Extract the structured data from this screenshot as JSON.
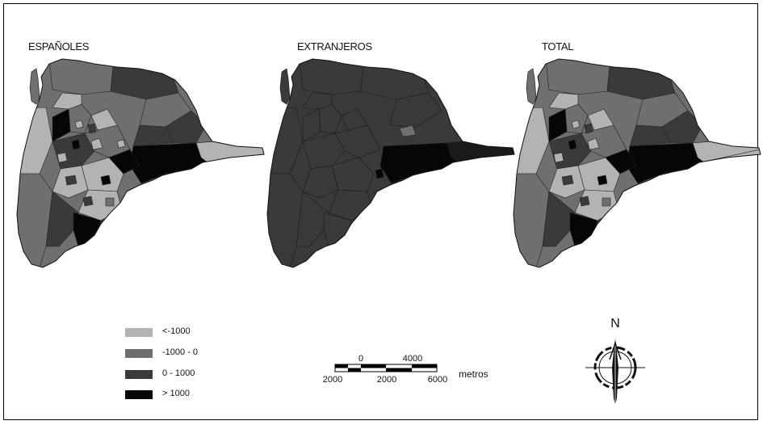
{
  "maps": [
    {
      "title": "ESPAÑOLES"
    },
    {
      "title": "EXTRANJEROS"
    },
    {
      "title": "TOTAL"
    }
  ],
  "legend": {
    "items": [
      {
        "label": "<-1000",
        "color": "#b3b3b3"
      },
      {
        "label": "-1000 - 0",
        "color": "#6f6f6f"
      },
      {
        "label": "0 - 1000",
        "color": "#3a3a3a"
      },
      {
        "label": "> 1000",
        "color": "#060606"
      }
    ]
  },
  "scale_bar": {
    "top_labels": [
      "0",
      "4000"
    ],
    "bottom_labels": [
      "2000",
      "2000",
      "6000"
    ],
    "unit": "metros"
  },
  "north_arrow": {
    "label": "N"
  }
}
